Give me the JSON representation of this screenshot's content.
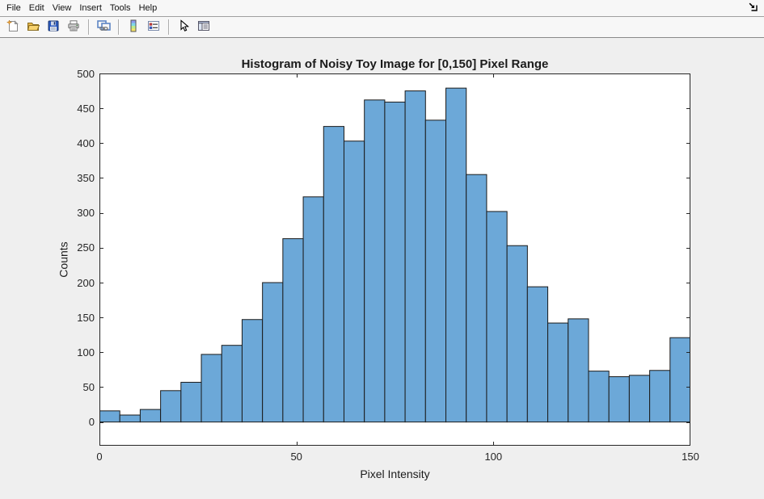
{
  "window": {
    "menu": {
      "items": [
        "File",
        "Edit",
        "View",
        "Insert",
        "Tools",
        "Help"
      ]
    },
    "dock_icon": "dock-arrow-icon"
  },
  "toolbar": {
    "items": [
      {
        "type": "button",
        "name": "new-figure-button",
        "icon": "new-document-icon"
      },
      {
        "type": "button",
        "name": "open-file-button",
        "icon": "open-folder-icon"
      },
      {
        "type": "button",
        "name": "save-figure-button",
        "icon": "save-floppy-icon"
      },
      {
        "type": "button",
        "name": "print-figure-button",
        "icon": "printer-icon"
      },
      {
        "type": "separator"
      },
      {
        "type": "button",
        "name": "link-plot-button",
        "icon": "link-windows-icon"
      },
      {
        "type": "separator"
      },
      {
        "type": "button",
        "name": "insert-colorbar-button",
        "icon": "colorbar-icon"
      },
      {
        "type": "button",
        "name": "insert-legend-button",
        "icon": "legend-icon"
      },
      {
        "type": "separator"
      },
      {
        "type": "button",
        "name": "edit-plot-button",
        "icon": "pointer-arrow-icon"
      },
      {
        "type": "button",
        "name": "property-editor-button",
        "icon": "property-window-icon"
      }
    ]
  },
  "chart_data": {
    "type": "bar",
    "subtype": "histogram",
    "title": "Histogram of Noisy Toy Image for [0,150] Pixel Range",
    "xlabel": "Pixel Intensity",
    "ylabel": "Counts",
    "xlim": [
      0,
      150
    ],
    "ylim": [
      -34,
      500
    ],
    "x_ticks": [
      0,
      50,
      100,
      150
    ],
    "y_ticks": [
      0,
      50,
      100,
      150,
      200,
      250,
      300,
      350,
      400,
      450,
      500
    ],
    "grid": false,
    "legend": null,
    "bins": 29,
    "bin_range": [
      0,
      150
    ],
    "counts": [
      16,
      10,
      18,
      45,
      57,
      97,
      110,
      147,
      200,
      263,
      323,
      424,
      403,
      462,
      459,
      475,
      433,
      479,
      355,
      302,
      253,
      194,
      142,
      148,
      73,
      65,
      67,
      74,
      121
    ],
    "bar_color": "#6CA8D8",
    "bar_edge_color": "#1b1b1b",
    "axis_color": "#262626",
    "plot_bg": "#ffffff"
  }
}
